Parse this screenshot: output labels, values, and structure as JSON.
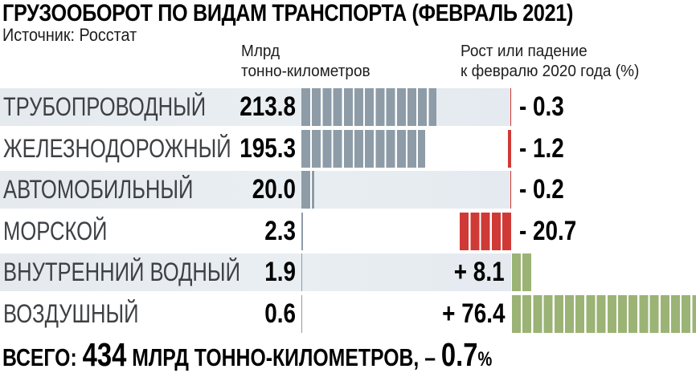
{
  "title": "ГРУЗООБОРОТ ПО ВИДАМ ТРАНСПОРТА (ФЕВРАЛЬ 2021)",
  "source": "Источник: Росстат",
  "columns": {
    "volume": {
      "line1": "Млрд",
      "line2": "тонно-километров"
    },
    "change": {
      "line1": "Рост или падение",
      "line2": "к февралю 2020 года (%)"
    }
  },
  "rows": [
    {
      "label": "ТРУБОПРОВОДНЫЙ",
      "value": 213.8,
      "value_label": "213.8",
      "change": -0.3,
      "change_label": "- 0.3"
    },
    {
      "label": "ЖЕЛЕЗНОДОРОЖНЫЙ",
      "value": 195.3,
      "value_label": "195.3",
      "change": -1.2,
      "change_label": "- 1.2"
    },
    {
      "label": "АВТОМОБИЛЬНЫЙ",
      "value": 20.0,
      "value_label": "20.0",
      "change": -0.2,
      "change_label": "- 0.2"
    },
    {
      "label": "МОРСКОЙ",
      "value": 2.3,
      "value_label": "2.3",
      "change": -20.7,
      "change_label": "- 20.7"
    },
    {
      "label": "ВНУТРЕННИЙ ВОДНЫЙ",
      "value": 1.9,
      "value_label": "1.9",
      "change": 8.1,
      "change_label": "+ 8.1"
    },
    {
      "label": "ВОЗДУШНЫЙ",
      "value": 0.6,
      "value_label": "0.6",
      "change": 76.4,
      "change_label": "+ 76.4"
    }
  ],
  "footer": {
    "prefix": "ВСЕГО: ",
    "total": "434",
    "middle": " МЛРД ТОННО-КИЛОМЕТРОВ, ",
    "sign": "– ",
    "pct": "0.7",
    "percent_sign": "%"
  },
  "colors": {
    "volume_bar": "#8e9ca8",
    "negative_bar": "#cf3a36",
    "positive_bar": "#9bb375",
    "row_shade": "#e6ebef",
    "label_gray": "#3e4144",
    "text_dark": "#000000"
  },
  "chart_data": {
    "type": "bar",
    "orientation": "horizontal",
    "title": "ГРУЗООБОРОТ ПО ВИДАМ ТРАНСПОРТА (ФЕВРАЛЬ 2021)",
    "source": "Росстат",
    "categories": [
      "ТРУБОПРОВОДНЫЙ",
      "ЖЕЛЕЗНОДОРОЖНЫЙ",
      "АВТОМОБИЛЬНЫЙ",
      "МОРСКОЙ",
      "ВНУТРЕННИЙ ВОДНЫЙ",
      "ВОЗДУШНЫЙ"
    ],
    "series": [
      {
        "name": "Млрд тонно-километров",
        "values": [
          213.8,
          195.3,
          20.0,
          2.3,
          1.9,
          0.6
        ]
      },
      {
        "name": "Рост или падение к февралю 2020 года (%)",
        "values": [
          -0.3,
          -1.2,
          -0.2,
          -20.7,
          8.1,
          76.4
        ]
      }
    ],
    "total": {
      "label": "ВСЕГО",
      "value": 434,
      "unit": "млрд тонно-километров",
      "change_pct": -0.7
    },
    "legend_position": "none",
    "grid": false,
    "negative_color": "#cf3a36",
    "positive_color": "#9bb375",
    "volume_color": "#8e9ca8"
  }
}
